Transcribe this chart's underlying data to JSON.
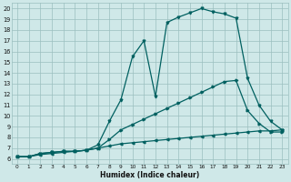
{
  "xlabel": "Humidex (Indice chaleur)",
  "background_color": "#cfe8e8",
  "grid_color": "#9bbfbf",
  "line_color": "#006060",
  "xlim": [
    -0.5,
    23.5
  ],
  "ylim": [
    5.5,
    20.5
  ],
  "xticks": [
    0,
    1,
    2,
    3,
    4,
    5,
    6,
    7,
    8,
    9,
    10,
    11,
    12,
    13,
    14,
    15,
    16,
    17,
    18,
    19,
    20,
    21,
    22,
    23
  ],
  "yticks": [
    6,
    7,
    8,
    9,
    10,
    11,
    12,
    13,
    14,
    15,
    16,
    17,
    18,
    19,
    20
  ],
  "curve_peak_x": [
    0,
    1,
    2,
    3,
    4,
    5,
    6,
    7,
    8,
    9,
    10,
    11,
    12,
    13,
    14,
    15,
    16,
    17,
    18,
    19,
    20,
    21,
    22,
    23
  ],
  "curve_peak_y": [
    6.2,
    6.2,
    6.5,
    6.6,
    6.7,
    6.7,
    6.8,
    7.3,
    9.5,
    11.5,
    15.5,
    17.0,
    11.8,
    18.7,
    19.2,
    19.6,
    20.0,
    19.7,
    19.5,
    19.1,
    13.5,
    11.0,
    9.5,
    8.7
  ],
  "curve_mid_x": [
    0,
    1,
    2,
    3,
    4,
    5,
    6,
    7,
    8,
    9,
    10,
    11,
    12,
    13,
    14,
    15,
    16,
    17,
    18,
    19,
    20,
    21,
    22,
    23
  ],
  "curve_mid_y": [
    6.2,
    6.2,
    6.5,
    6.6,
    6.7,
    6.7,
    6.8,
    7.0,
    7.8,
    8.7,
    9.2,
    9.7,
    10.2,
    10.7,
    11.2,
    11.7,
    12.2,
    12.7,
    13.2,
    13.3,
    10.5,
    9.3,
    8.5,
    8.5
  ],
  "curve_low_x": [
    0,
    1,
    2,
    3,
    4,
    5,
    6,
    7,
    8,
    9,
    10,
    11,
    12,
    13,
    14,
    15,
    16,
    17,
    18,
    19,
    20,
    21,
    22,
    23
  ],
  "curve_low_y": [
    6.2,
    6.2,
    6.4,
    6.5,
    6.6,
    6.7,
    6.8,
    7.0,
    7.2,
    7.4,
    7.5,
    7.6,
    7.7,
    7.8,
    7.9,
    8.0,
    8.1,
    8.2,
    8.3,
    8.4,
    8.5,
    8.6,
    8.6,
    8.7
  ]
}
